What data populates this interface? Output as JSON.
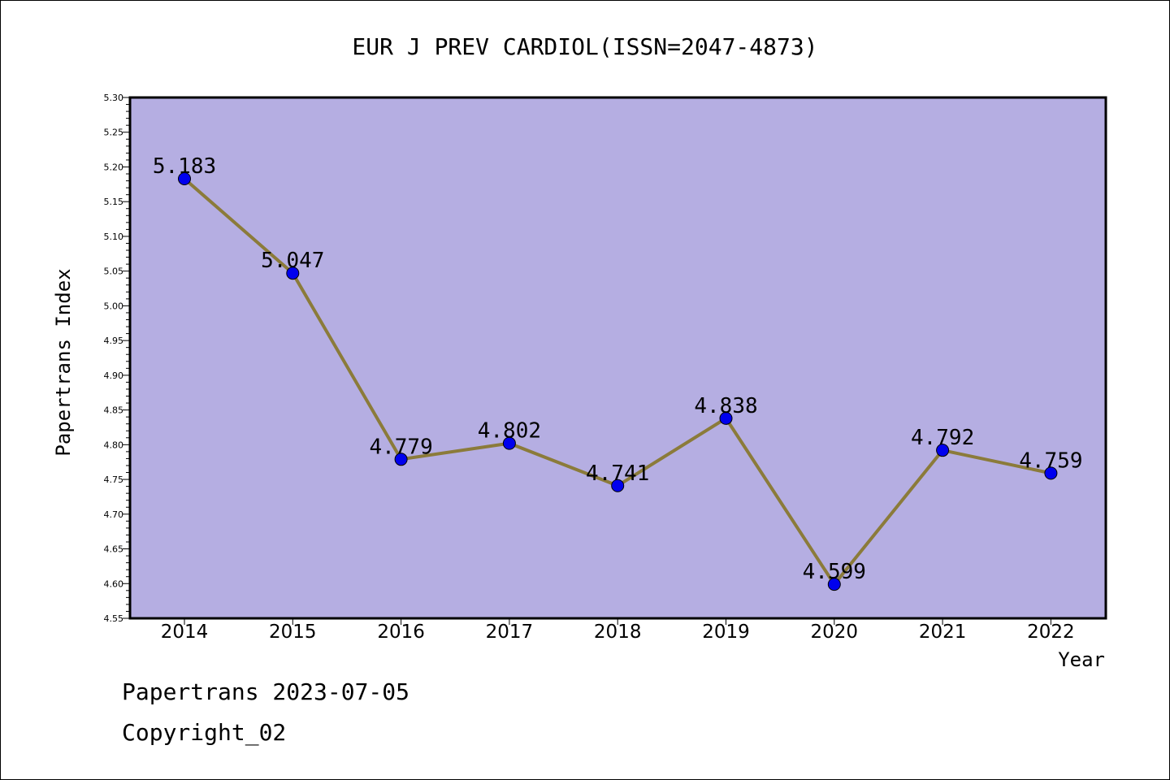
{
  "chart_data": {
    "type": "line",
    "title": "EUR J PREV CARDIOL(ISSN=2047-4873)",
    "xlabel": "Year",
    "ylabel": "Papertrans Index",
    "categories": [
      "2014",
      "2015",
      "2016",
      "2017",
      "2018",
      "2019",
      "2020",
      "2021",
      "2022"
    ],
    "values": [
      5.183,
      5.047,
      4.779,
      4.802,
      4.741,
      4.838,
      4.599,
      4.792,
      4.759
    ],
    "data_labels": [
      "5.183",
      "5.047",
      "4.779",
      "4.802",
      "4.741",
      "4.838",
      "4.599",
      "4.792",
      "4.759"
    ],
    "ylim": [
      4.55,
      5.3
    ],
    "yticks": [
      "4.55",
      "4.60",
      "4.65",
      "4.70",
      "4.75",
      "4.80",
      "4.85",
      "4.90",
      "4.95",
      "5.00",
      "5.05",
      "5.10",
      "5.15",
      "5.20",
      "5.25",
      "5.30"
    ],
    "grid": false,
    "legend": "none",
    "colors": {
      "plot_background": "#b5aee2",
      "line": "#8b7b3a",
      "marker": "#0000ee"
    }
  },
  "footer": {
    "line1": "Papertrans 2023-07-05",
    "line2": "Copyright_02"
  }
}
